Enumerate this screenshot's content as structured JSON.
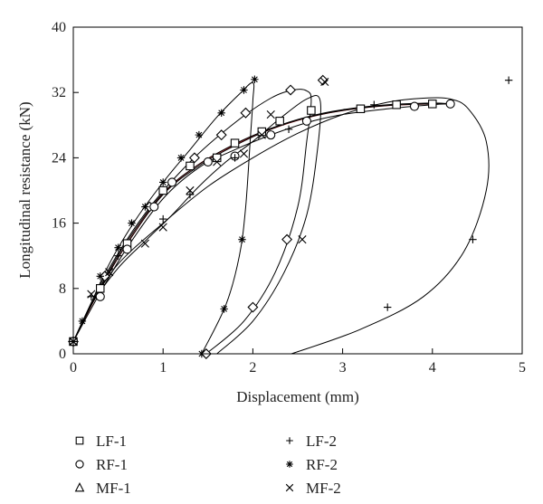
{
  "chart_data": {
    "type": "scatter",
    "xlabel": "Displacement (mm)",
    "ylabel": "Longitudinal resistance (kN)",
    "xlim": [
      0,
      5
    ],
    "ylim": [
      0,
      40
    ],
    "x_ticks": [
      "0",
      "1",
      "2",
      "3",
      "4",
      "5"
    ],
    "y_ticks": [
      "0",
      "8",
      "16",
      "24",
      "32",
      "40"
    ],
    "grid": false,
    "legend_position": "bottom",
    "series": [
      {
        "name": "LF-1",
        "marker": "square",
        "points": [
          [
            0.0,
            1.5
          ],
          [
            0.3,
            8.0
          ],
          [
            0.6,
            13.5
          ],
          [
            1.0,
            20.0
          ],
          [
            1.3,
            23.0
          ],
          [
            1.6,
            24.0
          ],
          [
            1.8,
            25.8
          ],
          [
            2.1,
            27.2
          ],
          [
            2.3,
            28.5
          ],
          [
            2.65,
            29.8
          ],
          [
            3.2,
            30.0
          ],
          [
            3.6,
            30.5
          ],
          [
            4.0,
            30.6
          ]
        ],
        "path": [
          [
            0.0,
            1.5
          ],
          [
            0.3,
            8.0
          ],
          [
            0.6,
            13.5
          ],
          [
            1.0,
            19.5
          ],
          [
            1.4,
            23.0
          ],
          [
            1.8,
            25.5
          ],
          [
            2.2,
            27.5
          ],
          [
            2.6,
            28.9
          ],
          [
            3.0,
            29.8
          ],
          [
            3.5,
            30.4
          ],
          [
            4.0,
            30.6
          ],
          [
            4.1,
            30.6
          ]
        ]
      },
      {
        "name": "RF-1",
        "marker": "circle",
        "points": [
          [
            0.0,
            1.5
          ],
          [
            0.3,
            7.0
          ],
          [
            0.6,
            12.8
          ],
          [
            0.9,
            18.0
          ],
          [
            1.1,
            21.0
          ],
          [
            1.5,
            23.5
          ],
          [
            1.8,
            24.2
          ],
          [
            2.2,
            26.8
          ],
          [
            2.6,
            28.5
          ],
          [
            3.8,
            30.3
          ],
          [
            4.2,
            30.6
          ]
        ],
        "path": [
          [
            0.0,
            1.5
          ],
          [
            0.3,
            7.5
          ],
          [
            0.6,
            13.0
          ],
          [
            1.0,
            19.0
          ],
          [
            1.4,
            22.8
          ],
          [
            1.8,
            25.0
          ],
          [
            2.2,
            26.8
          ],
          [
            2.6,
            28.3
          ],
          [
            3.0,
            29.3
          ],
          [
            3.5,
            30.0
          ],
          [
            4.0,
            30.5
          ],
          [
            4.2,
            30.6
          ]
        ]
      },
      {
        "name": "MF-1",
        "marker": "triangle",
        "points": [],
        "path": [
          [
            0.0,
            1.5
          ],
          [
            0.3,
            8.2
          ],
          [
            0.6,
            13.8
          ],
          [
            1.0,
            19.7
          ],
          [
            1.4,
            23.2
          ],
          [
            1.8,
            25.7
          ],
          [
            2.2,
            27.6
          ],
          [
            2.6,
            29.0
          ],
          [
            3.0,
            29.9
          ],
          [
            3.5,
            30.5
          ],
          [
            4.0,
            30.7
          ],
          [
            4.2,
            30.6
          ]
        ]
      },
      {
        "name": "LF-2",
        "marker": "plus",
        "points": [
          [
            0.0,
            1.5
          ],
          [
            0.2,
            7.0
          ],
          [
            0.5,
            12.0
          ],
          [
            1.0,
            16.5
          ],
          [
            1.3,
            19.5
          ],
          [
            1.8,
            24.0
          ],
          [
            2.4,
            27.5
          ],
          [
            3.35,
            30.5
          ],
          [
            3.5,
            5.7
          ],
          [
            4.45,
            14.0
          ],
          [
            4.85,
            33.5
          ]
        ],
        "path": [
          [
            0.0,
            1.5
          ],
          [
            0.2,
            6.0
          ],
          [
            0.5,
            11.0
          ],
          [
            1.0,
            16.0
          ],
          [
            1.5,
            20.5
          ],
          [
            2.0,
            24.0
          ],
          [
            2.5,
            27.0
          ],
          [
            3.0,
            29.3
          ],
          [
            3.5,
            30.8
          ],
          [
            3.9,
            31.3
          ],
          [
            4.2,
            31.2
          ],
          [
            4.4,
            30.0
          ],
          [
            4.6,
            26.0
          ],
          [
            4.6,
            20.0
          ],
          [
            4.35,
            12.5
          ],
          [
            3.9,
            7.0
          ],
          [
            3.2,
            3.0
          ],
          [
            2.43,
            0.0
          ]
        ]
      },
      {
        "name": "RF-2",
        "marker": "asterisk",
        "points": [
          [
            0.0,
            1.5
          ],
          [
            0.1,
            4.0
          ],
          [
            0.3,
            9.5
          ],
          [
            0.5,
            13.0
          ],
          [
            0.65,
            16.0
          ],
          [
            0.8,
            18.0
          ],
          [
            1.0,
            21.0
          ],
          [
            1.2,
            24.0
          ],
          [
            1.4,
            26.8
          ],
          [
            1.65,
            29.5
          ],
          [
            1.9,
            32.3
          ],
          [
            2.02,
            33.6
          ],
          [
            1.88,
            14.0
          ],
          [
            1.68,
            5.5
          ],
          [
            1.43,
            0.0
          ]
        ],
        "path": [
          [
            0.0,
            1.5
          ],
          [
            0.15,
            5.0
          ],
          [
            0.4,
            11.0
          ],
          [
            0.7,
            16.5
          ],
          [
            1.0,
            21.0
          ],
          [
            1.3,
            25.0
          ],
          [
            1.6,
            29.0
          ],
          [
            1.85,
            31.8
          ],
          [
            2.0,
            33.2
          ],
          [
            2.0,
            31.0
          ],
          [
            1.97,
            26.0
          ],
          [
            1.92,
            18.0
          ],
          [
            1.85,
            12.0
          ],
          [
            1.7,
            6.0
          ],
          [
            1.43,
            0.0
          ]
        ]
      },
      {
        "name": "MF-2",
        "marker": "x",
        "points": [
          [
            0.0,
            1.5
          ],
          [
            0.2,
            7.3
          ],
          [
            0.4,
            10.0
          ],
          [
            0.8,
            13.5
          ],
          [
            1.0,
            15.5
          ],
          [
            1.3,
            20.0
          ],
          [
            1.6,
            23.5
          ],
          [
            1.9,
            24.5
          ],
          [
            2.1,
            26.8
          ],
          [
            2.2,
            29.3
          ],
          [
            2.55,
            14.0
          ],
          [
            2.8,
            33.3
          ]
        ],
        "path": [
          [
            0.0,
            1.5
          ],
          [
            0.2,
            6.0
          ],
          [
            0.5,
            10.5
          ],
          [
            0.8,
            13.8
          ],
          [
            1.1,
            17.0
          ],
          [
            1.4,
            20.5
          ],
          [
            1.7,
            23.5
          ],
          [
            2.0,
            26.0
          ],
          [
            2.3,
            28.8
          ],
          [
            2.6,
            31.2
          ],
          [
            2.75,
            31.0
          ],
          [
            2.72,
            25.0
          ],
          [
            2.6,
            17.0
          ],
          [
            2.35,
            10.0
          ],
          [
            2.0,
            4.0
          ],
          [
            1.6,
            0.0
          ]
        ]
      }
    ],
    "extra_curves": [
      {
        "marker": "diamond",
        "points": [
          [
            0.0,
            1.5
          ],
          [
            0.35,
            9.5
          ],
          [
            0.85,
            18.0
          ],
          [
            1.35,
            24.0
          ],
          [
            1.65,
            26.8
          ],
          [
            1.92,
            29.5
          ],
          [
            2.42,
            32.3
          ],
          [
            2.78,
            33.5
          ],
          [
            2.38,
            14.0
          ],
          [
            2.0,
            5.7
          ],
          [
            1.48,
            0.0
          ]
        ],
        "path": [
          [
            0.0,
            1.5
          ],
          [
            0.35,
            9.5
          ],
          [
            0.8,
            17.2
          ],
          [
            1.3,
            23.5
          ],
          [
            1.8,
            28.3
          ],
          [
            2.2,
            31.3
          ],
          [
            2.45,
            32.3
          ],
          [
            2.6,
            32.2
          ],
          [
            2.65,
            31.0
          ],
          [
            2.6,
            26.0
          ],
          [
            2.5,
            18.0
          ],
          [
            2.25,
            10.0
          ],
          [
            1.9,
            4.0
          ],
          [
            1.48,
            0.0
          ]
        ],
        "color": "#000000"
      },
      {
        "marker": "none",
        "points": [],
        "path": [
          [
            0.0,
            1.5
          ],
          [
            0.3,
            8.0
          ],
          [
            0.6,
            13.5
          ],
          [
            1.0,
            19.6
          ],
          [
            1.4,
            23.2
          ],
          [
            1.8,
            25.6
          ],
          [
            2.2,
            27.5
          ],
          [
            2.6,
            28.9
          ],
          [
            3.0,
            29.8
          ],
          [
            3.5,
            30.4
          ],
          [
            4.0,
            30.6
          ],
          [
            4.15,
            30.6
          ]
        ],
        "color": "#c0282d"
      }
    ]
  }
}
